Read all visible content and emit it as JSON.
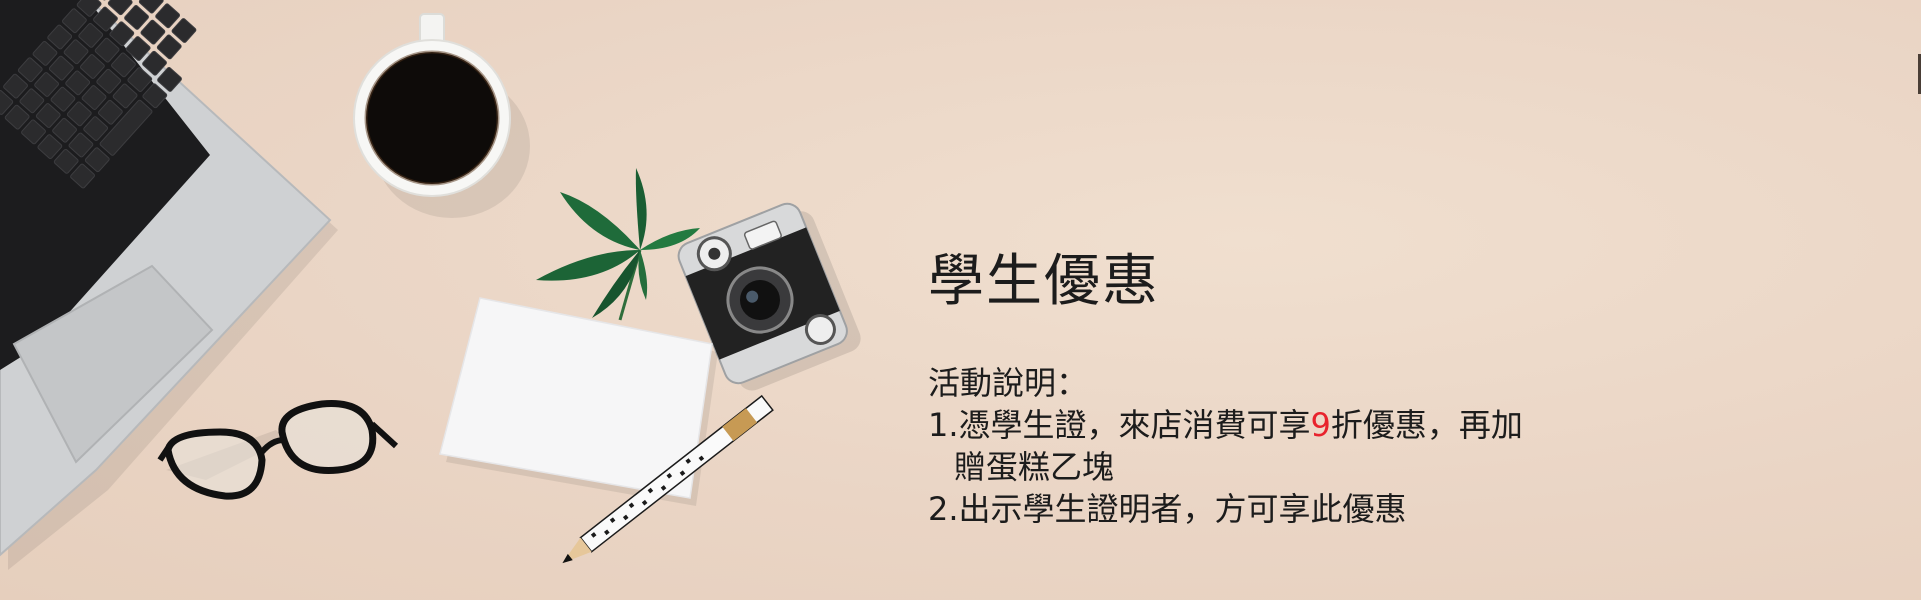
{
  "promo": {
    "title": "學生優惠",
    "subtitle": "活動說明：",
    "item1_before": "1.憑學生證，來店消費可享",
    "item1_highlight": "9",
    "item1_after": "折優惠，再加",
    "item1_cont": "贈蛋糕乙塊",
    "item2": "2.出示學生證明者，方可享此優惠"
  },
  "colors": {
    "background": "#ead5c5",
    "text": "#1c1c1c",
    "highlight": "#e8232d"
  },
  "scene_objects": [
    "laptop-illustration",
    "coffee-cup-illustration",
    "leaf-sprig-illustration",
    "camera-illustration",
    "blank-card-illustration",
    "pencil-illustration",
    "glasses-illustration"
  ]
}
